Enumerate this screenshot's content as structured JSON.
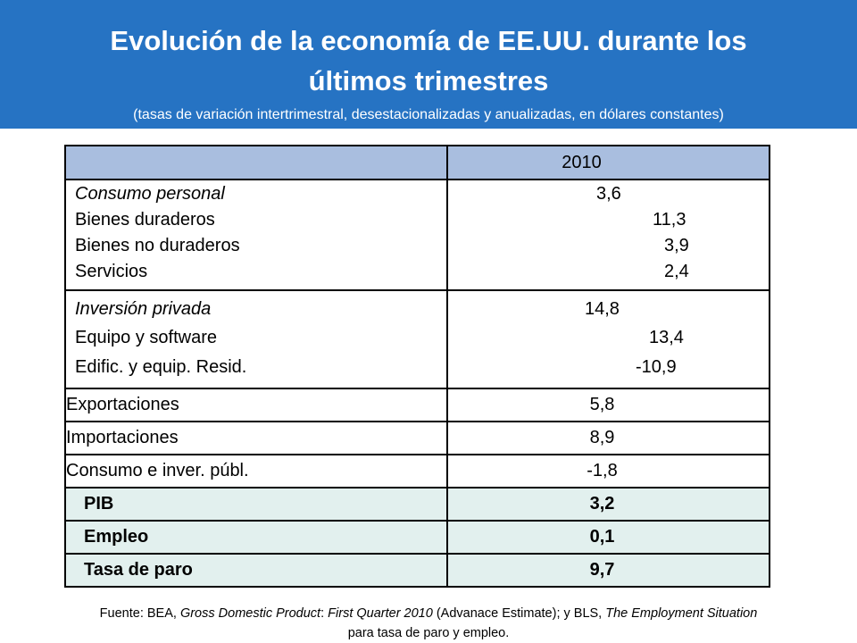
{
  "header": {
    "title_line1": "Evolución de la economía de EE.UU. durante los",
    "title_line2": "últimos trimestres",
    "subtitle": "(tasas de variación intertrimestral, desestacionalizadas y anualizadas, en dólares constantes)"
  },
  "table": {
    "column_header": "2010",
    "rows": [
      {
        "label": "Consumo personal",
        "value": "3,6"
      },
      {
        "label": "Bienes duraderos",
        "value": "11,3"
      },
      {
        "label": "Bienes no duraderos",
        "value": "3,9"
      },
      {
        "label": "Servicios",
        "value": "2,4"
      },
      {
        "label": "Inversión privada",
        "value": "14,8"
      },
      {
        "label": "Equipo y software",
        "value": "13,4"
      },
      {
        "label": "Edific. y equip. Resid.",
        "value": "-10,9"
      },
      {
        "label": "Exportaciones",
        "value": "5,8"
      },
      {
        "label": "Importaciones",
        "value": "8,9"
      },
      {
        "label": "Consumo e inver. públ.",
        "value": "-1,8"
      },
      {
        "label": "PIB",
        "value": "3,2"
      },
      {
        "label": "Empleo",
        "value": "0,1"
      },
      {
        "label": "Tasa de paro",
        "value": "9,7"
      }
    ]
  },
  "footer": {
    "source_prefix": "Fuente: BEA, ",
    "source_title1": "Gross Domestic Product",
    "source_colon": ": ",
    "source_title2": "First Quarter 2010",
    "source_mid": " (Advanace Estimate); y BLS, ",
    "source_title3": "The Employment Situation",
    "source_suffix": "para tasa de paro y empleo."
  },
  "colors": {
    "banner": "#2673c3",
    "header_row": "#a9bedf",
    "highlight_row": "#e2f0ee"
  }
}
